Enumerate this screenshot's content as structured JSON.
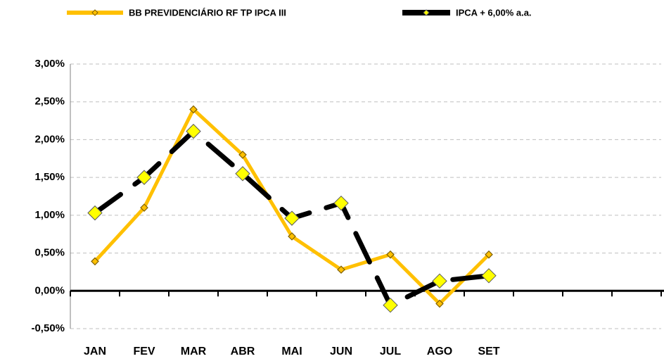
{
  "chart_data": {
    "type": "line",
    "categories": [
      "JAN",
      "FEV",
      "MAR",
      "ABR",
      "MAI",
      "JUN",
      "JUL",
      "AGO",
      "SET",
      null,
      null,
      null
    ],
    "series": [
      {
        "name": "BB PREVIDENCIÁRIO RF TP IPCA III",
        "color": "#ffc000",
        "values": [
          0.39,
          1.1,
          2.4,
          1.8,
          0.72,
          0.28,
          0.48,
          -0.17,
          0.48,
          null,
          null,
          null
        ]
      },
      {
        "name": "IPCA + 6,00% a.a.",
        "color": "#000000",
        "values": [
          1.03,
          1.5,
          2.11,
          1.55,
          0.96,
          1.16,
          -0.19,
          0.13,
          0.2,
          null,
          null,
          null
        ]
      }
    ],
    "ylim": [
      -0.5,
      3.0
    ],
    "yticks": [
      {
        "value": -0.5,
        "label": "-0,50%"
      },
      {
        "value": 0,
        "label": "0,00%"
      },
      {
        "value": 0.5,
        "label": "0,50%"
      },
      {
        "value": 1.0,
        "label": "1,00%"
      },
      {
        "value": 1.5,
        "label": "1,50%"
      },
      {
        "value": 2.0,
        "label": "2,00%"
      },
      {
        "value": 2.5,
        "label": "2,50%"
      },
      {
        "value": 3.0,
        "label": "3,00%"
      }
    ],
    "grid": true
  }
}
